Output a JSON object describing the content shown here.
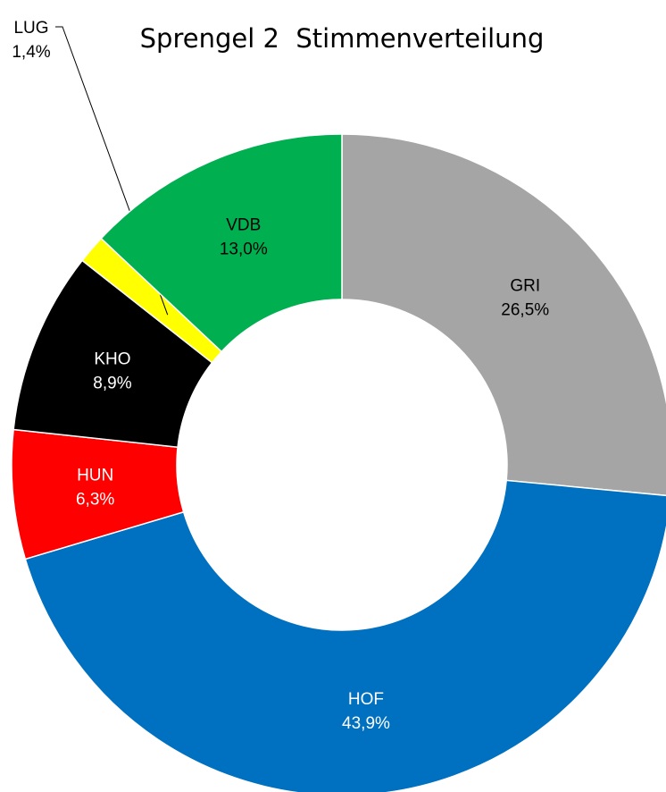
{
  "chart_data": {
    "type": "donut",
    "title": "Sprengel 2  Stimmenverteilung",
    "categories": [
      "GRI",
      "HOF",
      "HUN",
      "KHO",
      "LUG",
      "VDB"
    ],
    "values": [
      26.5,
      43.9,
      6.3,
      8.9,
      1.4,
      13.0
    ],
    "value_labels": [
      "26,5%",
      "43,9%",
      "6,3%",
      "8,9%",
      "1,4%",
      "13,0%"
    ],
    "colors": [
      "#a5a5a5",
      "#0070c0",
      "#ff0000",
      "#000000",
      "#ffff00",
      "#00b050"
    ],
    "label_colors": [
      "#000000",
      "#ffffff",
      "#ffffff",
      "#ffffff",
      "#000000",
      "#000000"
    ]
  }
}
